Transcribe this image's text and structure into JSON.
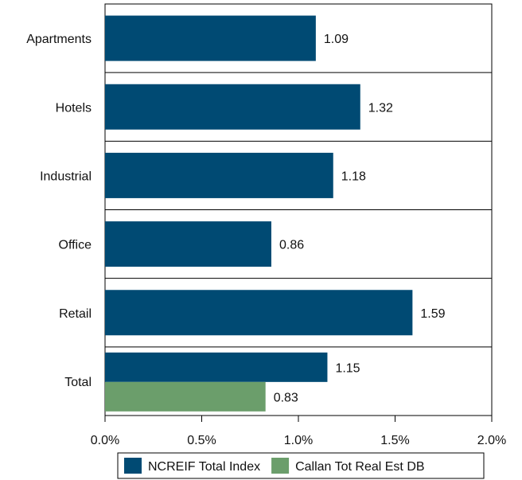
{
  "chart_data": {
    "type": "bar",
    "orientation": "horizontal",
    "categories": [
      "Apartments",
      "Hotels",
      "Industrial",
      "Office",
      "Retail",
      "Total"
    ],
    "series": [
      {
        "name": "NCREIF Total Index",
        "color": "#004a73",
        "values": [
          1.09,
          1.32,
          1.18,
          0.86,
          1.59,
          1.15
        ],
        "labels": [
          "1.09",
          "1.32",
          "1.18",
          "0.86",
          "1.59",
          "1.15"
        ]
      },
      {
        "name": "Callan Tot Real Est DB",
        "color": "#6b9e6b",
        "values": [
          null,
          null,
          null,
          null,
          null,
          0.83
        ],
        "labels": [
          null,
          null,
          null,
          null,
          null,
          "0.83"
        ]
      }
    ],
    "xlim": [
      0,
      2.0
    ],
    "xticks": [
      0,
      0.5,
      1.0,
      1.5,
      2.0
    ],
    "xtick_labels": [
      "0.0%",
      "0.5%",
      "1.0%",
      "1.5%",
      "2.0%"
    ],
    "grid": false,
    "category_separators": true,
    "legend_position": "bottom"
  }
}
